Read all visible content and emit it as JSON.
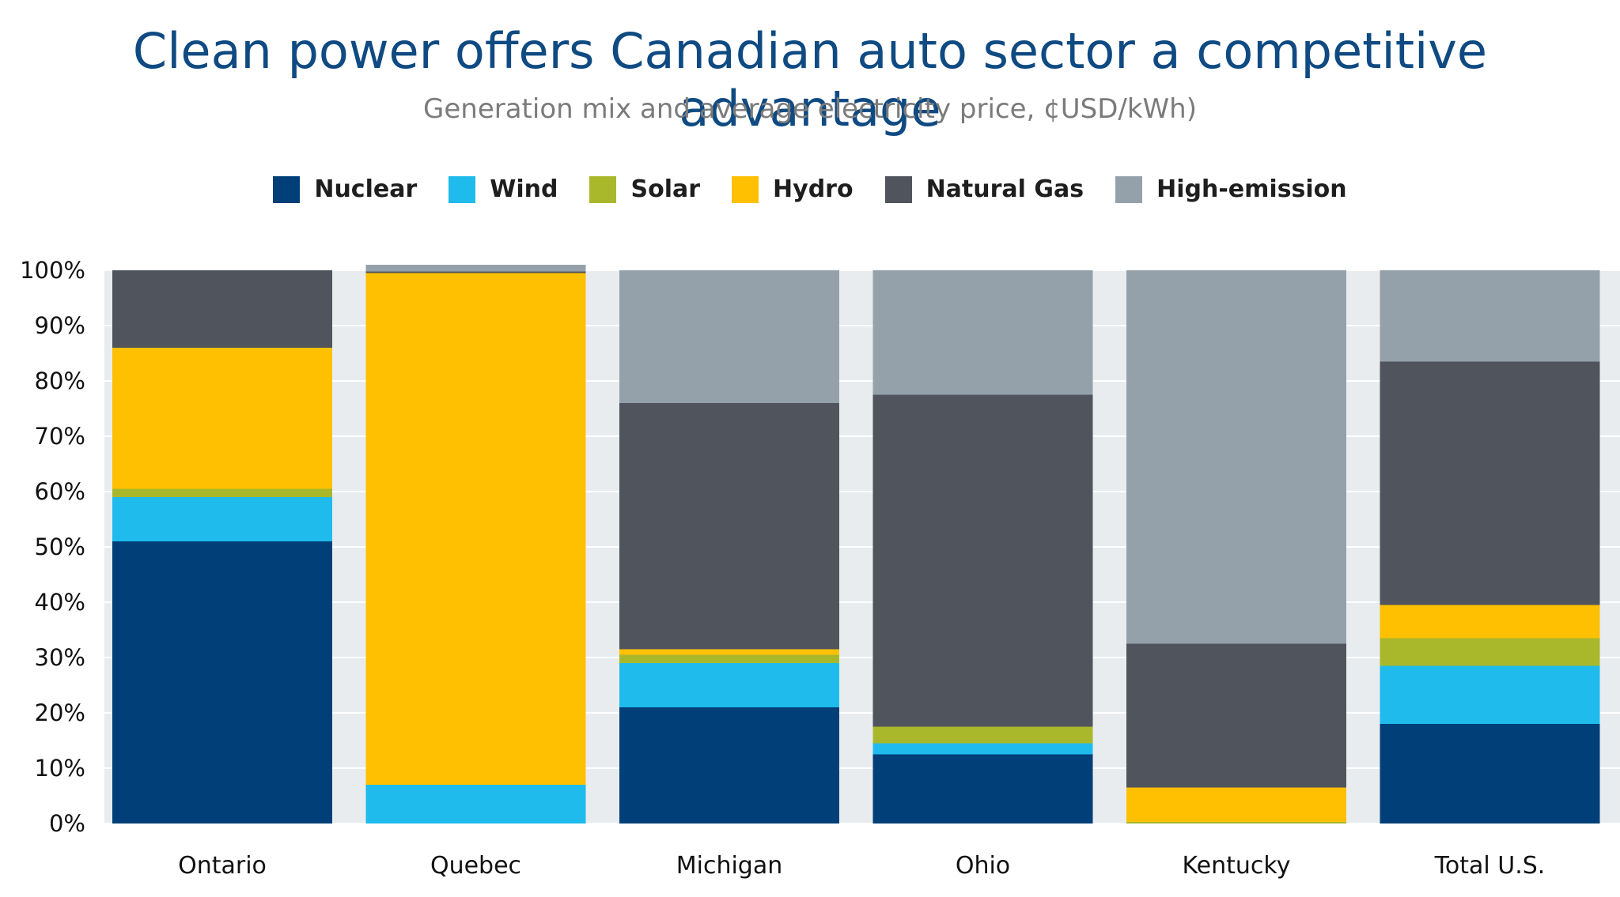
{
  "chart_data": {
    "type": "bar",
    "stacked": true,
    "title": "Clean power offers Canadian auto sector a competitive advantage",
    "subtitle": "Generation mix and average electricity price, ¢USD/kWh)",
    "xlabel": "",
    "ylabel": "",
    "ylim": [
      0,
      100
    ],
    "yticks": [
      "0%",
      "10%",
      "20%",
      "30%",
      "40%",
      "50%",
      "60%",
      "70%",
      "80%",
      "90%",
      "100%"
    ],
    "grid": true,
    "legend_position": "top",
    "categories": [
      "Ontario",
      "Quebec",
      "Michigan",
      "Ohio",
      "Kentucky",
      "Total U.S."
    ],
    "series": [
      {
        "name": "Nuclear",
        "color": "#003f78",
        "values": [
          51,
          0,
          21,
          12.5,
          0,
          18
        ]
      },
      {
        "name": "Wind",
        "color": "#1fbbec",
        "values": [
          8,
          7,
          8,
          2,
          0,
          10.5
        ]
      },
      {
        "name": "Solar",
        "color": "#a9b82b",
        "values": [
          1.5,
          0,
          1.5,
          3,
          0.3,
          5
        ]
      },
      {
        "name": "Hydro",
        "color": "#fec000",
        "values": [
          25.5,
          92.5,
          1,
          0,
          6.2,
          6
        ]
      },
      {
        "name": "Natural Gas",
        "color": "#50545d",
        "values": [
          14,
          0.3,
          44.5,
          60,
          26,
          44
        ]
      },
      {
        "name": "High-emission",
        "color": "#95a1aa",
        "values": [
          0,
          1.2,
          24,
          22.5,
          67.5,
          16.5
        ]
      }
    ]
  },
  "colors": {
    "title": "#0f4a82",
    "subtitle": "#7b7b7b",
    "plot_background": "#e8ecef",
    "gridline": "#ffffff"
  }
}
